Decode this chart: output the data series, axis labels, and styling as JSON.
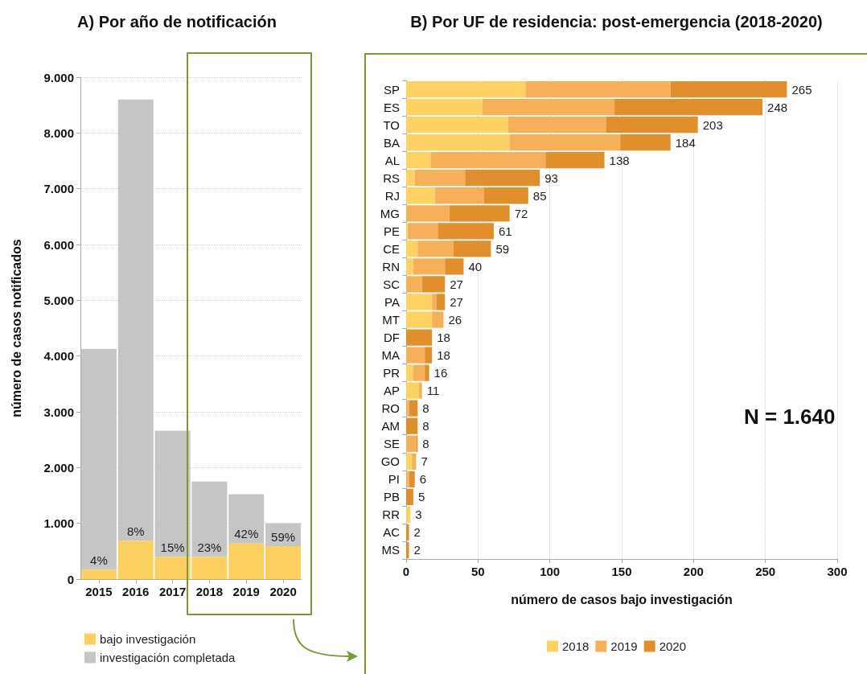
{
  "chart_data": [
    {
      "type": "bar",
      "title": "A) Por año de notificación",
      "ylabel": "número de casos notificados",
      "categories": [
        "2015",
        "2016",
        "2017",
        "2018",
        "2019",
        "2020"
      ],
      "stacked": true,
      "series": [
        {
          "name": "bajo investigación",
          "color": "#fcd05f",
          "values": [
            170,
            690,
            400,
            400,
            640,
            590
          ]
        },
        {
          "name": "investigación completada",
          "color": "#c4c5c4",
          "values": [
            3960,
            7910,
            2260,
            1350,
            880,
            410
          ]
        }
      ],
      "annotations": [
        {
          "text": "4%",
          "x": "2015",
          "y": 170
        },
        {
          "text": "8%",
          "x": "2016",
          "y": 690
        },
        {
          "text": "15%",
          "x": "2017",
          "y": 400
        },
        {
          "text": "23%",
          "x": "2018",
          "y": 400
        },
        {
          "text": "42%",
          "x": "2019",
          "y": 640
        },
        {
          "text": "59%",
          "x": "2020",
          "y": 590
        }
      ],
      "ylim": [
        0,
        9000
      ],
      "yticks": [
        0,
        {
          "value": 1000,
          "label": "1.000"
        },
        {
          "value": 2000,
          "label": "2.000"
        },
        {
          "value": 3000,
          "label": "3.000"
        },
        {
          "value": 4000,
          "label": "4.000"
        },
        {
          "value": 5000,
          "label": "5.000"
        },
        {
          "value": 6000,
          "label": "6.000"
        },
        {
          "value": 7000,
          "label": "7.000"
        },
        {
          "value": 8000,
          "label": "8.000"
        },
        {
          "value": 9000,
          "label": "9.000"
        }
      ],
      "grid": "y",
      "legend": "bottom left"
    },
    {
      "type": "bar",
      "title": "B) Por UF de residencia: post-emergencia (2018-2020)",
      "xlabel": "número de casos bajo investigación",
      "orientation": "horizontal",
      "stacked": true,
      "categories": [
        "SP",
        "ES",
        "TO",
        "BA",
        "AL",
        "RS",
        "RJ",
        "MG",
        "PE",
        "CE",
        "RN",
        "SC",
        "PA",
        "MT",
        "DF",
        "MA",
        "PR",
        "AP",
        "RO",
        "AM",
        "SE",
        "GO",
        "PI",
        "PB",
        "RR",
        "AC",
        "MS"
      ],
      "series": [
        {
          "name": "2018",
          "color": "#fdd262",
          "values": [
            83,
            53,
            71,
            72,
            17,
            6,
            20,
            0,
            1,
            8,
            5,
            0,
            18,
            18,
            0,
            0,
            5,
            9,
            0,
            0,
            0,
            4,
            0,
            0,
            3,
            0,
            0
          ]
        },
        {
          "name": "2019",
          "color": "#f6b05a",
          "values": [
            101,
            92,
            68,
            77,
            80,
            35,
            34,
            30,
            21,
            25,
            22,
            11,
            3,
            8,
            0,
            13,
            8,
            2,
            2,
            0,
            7,
            3,
            2,
            0,
            0,
            0,
            0
          ]
        },
        {
          "name": "2020",
          "color": "#e08f2c",
          "values": [
            81,
            103,
            64,
            35,
            41,
            52,
            31,
            42,
            39,
            26,
            13,
            16,
            6,
            0,
            18,
            5,
            3,
            0,
            6,
            8,
            1,
            0,
            4,
            5,
            0,
            2,
            2
          ]
        }
      ],
      "totals": [
        "265",
        "248",
        "203",
        "184",
        "138",
        "93",
        "85",
        "72",
        "61",
        "59",
        "40",
        "27",
        "27",
        "26",
        "18",
        "18",
        "16",
        "11",
        "8",
        "8",
        "8",
        "7",
        "6",
        "5",
        "3",
        "2",
        "2"
      ],
      "xlim": [
        0,
        300
      ],
      "xticks": [
        0,
        50,
        100,
        150,
        200,
        250,
        300
      ],
      "grid": "x",
      "legend": "bottom",
      "annotations": [
        "N = 1.640"
      ]
    }
  ]
}
